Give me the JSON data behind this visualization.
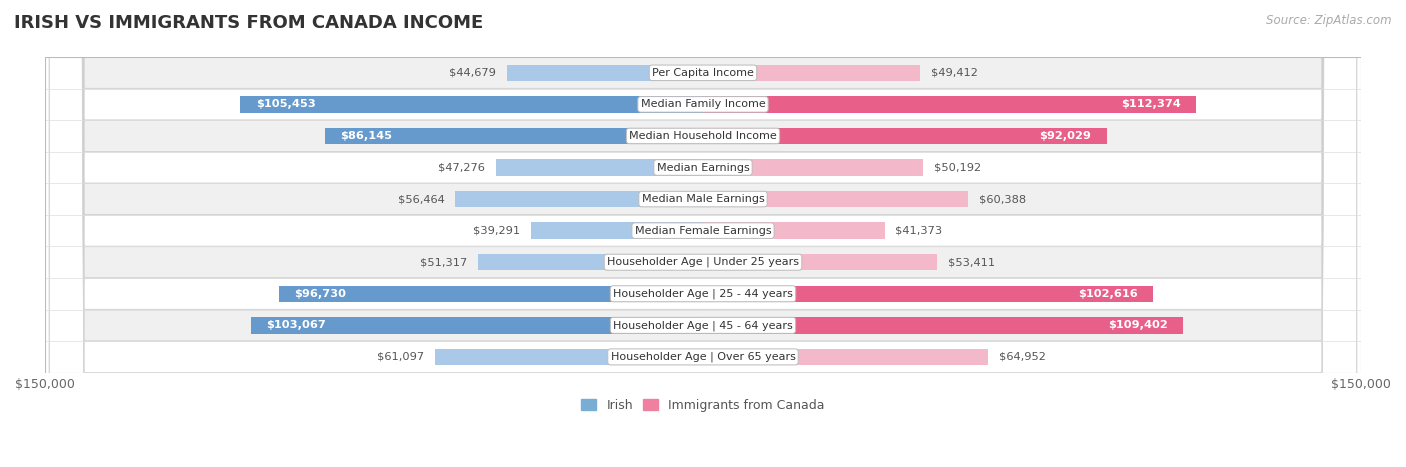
{
  "title": "IRISH VS IMMIGRANTS FROM CANADA INCOME",
  "source": "Source: ZipAtlas.com",
  "categories": [
    "Per Capita Income",
    "Median Family Income",
    "Median Household Income",
    "Median Earnings",
    "Median Male Earnings",
    "Median Female Earnings",
    "Householder Age | Under 25 years",
    "Householder Age | 25 - 44 years",
    "Householder Age | 45 - 64 years",
    "Householder Age | Over 65 years"
  ],
  "irish_values": [
    44679,
    105453,
    86145,
    47276,
    56464,
    39291,
    51317,
    96730,
    103067,
    61097
  ],
  "canada_values": [
    49412,
    112374,
    92029,
    50192,
    60388,
    41373,
    53411,
    102616,
    109402,
    64952
  ],
  "irish_color_light": "#aac8e8",
  "irish_color_dark": "#6699cc",
  "canada_color_light": "#f4b8cb",
  "canada_color_dark": "#e8608a",
  "irish_inside_threshold": 75000,
  "canada_inside_threshold": 75000,
  "max_value": 150000,
  "label_font_size": 8.5,
  "title_font_size": 13,
  "bar_height": 0.52,
  "legend_irish_color": "#7aadd4",
  "legend_canada_color": "#f080a0",
  "row_colors": [
    "#f0f0f0",
    "#ffffff",
    "#f0f0f0",
    "#ffffff",
    "#f0f0f0",
    "#ffffff",
    "#f0f0f0",
    "#ffffff",
    "#f0f0f0",
    "#ffffff"
  ]
}
